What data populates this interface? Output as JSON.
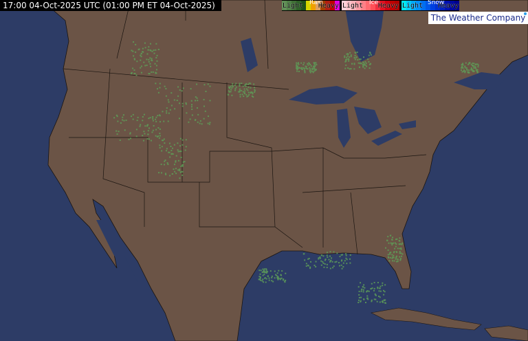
{
  "header": {
    "timestamp": "17:00 04-Oct-2025 UTC  (01:00 PM ET 04-Oct-2025)"
  },
  "legend": {
    "rain": {
      "title": "Rain",
      "light": "Light",
      "heavy": "Heavy",
      "colors": [
        "#5f8f55",
        "#4f8046",
        "#3f7035",
        "#2e6128",
        "#1e4f1a",
        "#d8d400",
        "#f0a000",
        "#e0a060",
        "#a04000",
        "#b01e10",
        "#c00000",
        "#e000e0"
      ]
    },
    "ice": {
      "title": "Ice",
      "light": "Light",
      "heavy": "Heavy",
      "colors": [
        "#ffd0d8",
        "#ffc0c8",
        "#ffb0b8",
        "#ff9aa4",
        "#ff8088",
        "#ff6a70",
        "#ff5058",
        "#f03040",
        "#e01020",
        "#d00010",
        "#c00000",
        "#b00000"
      ]
    },
    "snow": {
      "title": "Snow",
      "light": "Light",
      "heavy": "Heavy",
      "colors": [
        "#00e8f0",
        "#00c8f8",
        "#00a8f8",
        "#0090f8",
        "#0070f0",
        "#0058e8",
        "#0040e0",
        "#0030d0",
        "#0020c0",
        "#0010b0",
        "#0008a0",
        "#000090"
      ]
    }
  },
  "brand": {
    "name": "The Weather Company"
  },
  "map": {
    "land_color": "#6b5446",
    "water_color": "#2d3c66",
    "border_color": "#1a1410",
    "radar_color": "#5e9e58"
  }
}
